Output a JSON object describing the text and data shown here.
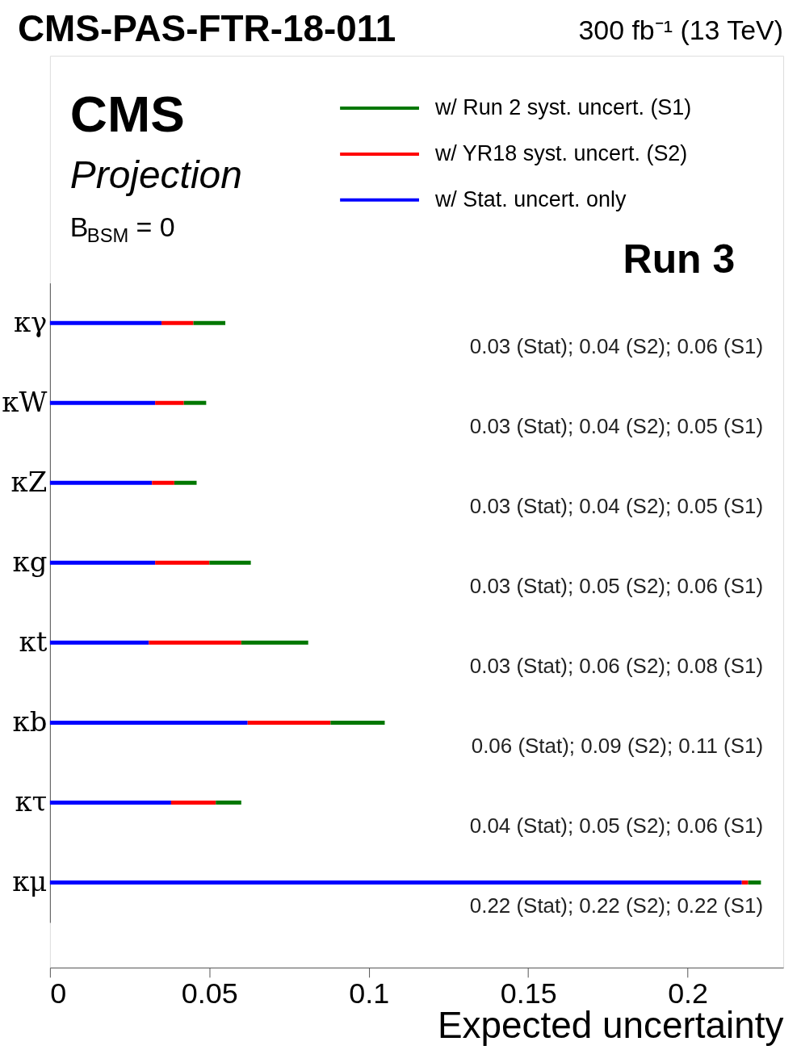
{
  "chart_data": {
    "type": "bar",
    "orientation": "horizontal",
    "stacked": true,
    "title": "CMS-PAS-FTR-18-011",
    "subtitle": "300 fb⁻¹ (13 TeV)",
    "xlabel": "Expected uncertainty",
    "categories": [
      "κγ",
      "κW",
      "κZ",
      "κg",
      "κt",
      "κb",
      "κτ",
      "κμ"
    ],
    "series": [
      {
        "name": "w/ Stat. uncert. only",
        "color": "#0000ff",
        "values": [
          0.035,
          0.033,
          0.032,
          0.033,
          0.031,
          0.062,
          0.038,
          0.217
        ]
      },
      {
        "name": "w/ YR18 syst. uncert. (S2)",
        "color": "#ff0000",
        "values": [
          0.01,
          0.009,
          0.007,
          0.017,
          0.029,
          0.026,
          0.014,
          0.002
        ]
      },
      {
        "name": "w/ Run 2 syst. uncert. (S1)",
        "color": "#007700",
        "values": [
          0.01,
          0.007,
          0.007,
          0.013,
          0.021,
          0.017,
          0.008,
          0.004
        ]
      }
    ],
    "xlim": [
      0,
      0.23
    ],
    "xticks": [
      0,
      0.05,
      0.1,
      0.15,
      0.2
    ],
    "grid": false,
    "legend": "top right",
    "annotations": [
      "CMS",
      "Projection",
      "B$_{BSM}$ = 0",
      "Run 3",
      "0.03 (Stat); 0.04 (S2); 0.06 (S1)",
      "0.03 (Stat); 0.04 (S2); 0.05 (S1)",
      "0.03 (Stat); 0.04 (S2); 0.05 (S1)",
      "0.03 (Stat); 0.05 (S2); 0.06 (S1)",
      "0.03 (Stat); 0.06 (S2); 0.08 (S1)",
      "0.06 (Stat); 0.09 (S2); 0.11 (S1)",
      "0.04 (Stat); 0.05 (S2); 0.06 (S1)",
      "0.22 (Stat); 0.22 (S2); 0.22 (S1)"
    ]
  }
}
